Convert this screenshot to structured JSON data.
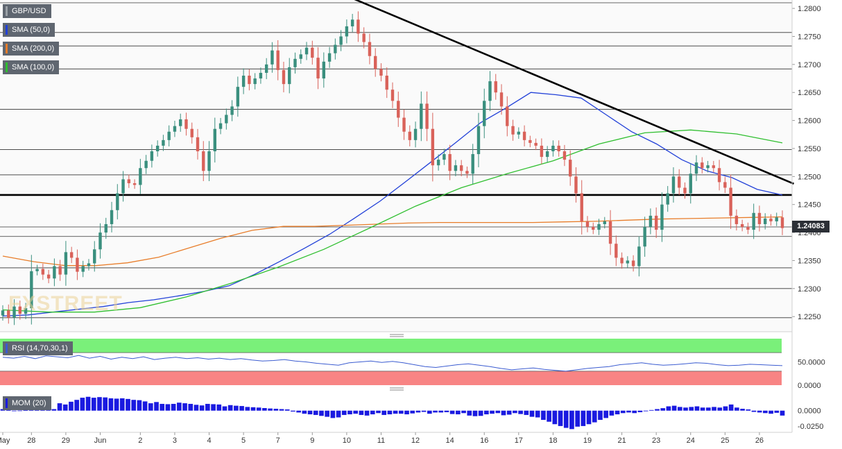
{
  "legend": {
    "symbol": "GBP/USD",
    "sma50": "SMA (50,0)",
    "sma200": "SMA (200,0)",
    "sma100": "SMA (100,0)",
    "rsi": "RSI (14,70,30,1)",
    "mom": "MOM (20)"
  },
  "watermark": "FXSTREET",
  "current_price": "1.24083",
  "colors": {
    "up": "#3a8f7e",
    "down": "#d9625a",
    "sma50": "#2140d8",
    "sma200": "#e87d2a",
    "sma100": "#2fbf2f",
    "rsi_overbought": "#7af07a",
    "rsi_oversold": "#f88484",
    "rsi_line": "#3a5bd0",
    "mom": "#1a1ae0"
  },
  "chart_data": [
    {
      "type": "candlestick",
      "symbol": "GBP/USD",
      "timeframe": "4h",
      "y_ticks": [
        "1.2800",
        "1.2750",
        "1.2700",
        "1.2650",
        "1.2600",
        "1.2550",
        "1.2500",
        "1.2450",
        "1.2400",
        "1.2350",
        "1.2300",
        "1.2250"
      ],
      "ylim": [
        1.2223,
        1.2815
      ],
      "x_labels": [
        {
          "label": "May",
          "index": 0
        },
        {
          "label": "28",
          "index": 5
        },
        {
          "label": "29",
          "index": 11
        },
        {
          "label": "Jun",
          "index": 17
        },
        {
          "label": "2",
          "index": 24
        },
        {
          "label": "3",
          "index": 30
        },
        {
          "label": "4",
          "index": 36
        },
        {
          "label": "5",
          "index": 42
        },
        {
          "label": "7",
          "index": 48
        },
        {
          "label": "9",
          "index": 54
        },
        {
          "label": "10",
          "index": 60
        },
        {
          "label": "11",
          "index": 66
        },
        {
          "label": "12",
          "index": 72
        },
        {
          "label": "14",
          "index": 78
        },
        {
          "label": "16",
          "index": 84
        },
        {
          "label": "17",
          "index": 90
        },
        {
          "label": "18",
          "index": 96
        },
        {
          "label": "19",
          "index": 102
        },
        {
          "label": "21",
          "index": 108
        },
        {
          "label": "23",
          "index": 114
        },
        {
          "label": "24",
          "index": 120
        },
        {
          "label": "25",
          "index": 126
        },
        {
          "label": "26",
          "index": 132
        }
      ],
      "closes": [
        1.2261,
        1.2248,
        1.2268,
        1.2255,
        1.2265,
        1.2331,
        1.2335,
        1.2325,
        1.2318,
        1.234,
        1.2325,
        1.2365,
        1.2355,
        1.233,
        1.234,
        1.2345,
        1.237,
        1.24,
        1.2415,
        1.244,
        1.247,
        1.2495,
        1.2488,
        1.2485,
        1.2515,
        1.2528,
        1.2545,
        1.2555,
        1.2565,
        1.258,
        1.259,
        1.2602,
        1.2585,
        1.257,
        1.2545,
        1.251,
        1.2545,
        1.2585,
        1.2595,
        1.261,
        1.2625,
        1.266,
        1.268,
        1.2665,
        1.2675,
        1.2685,
        1.27,
        1.2725,
        1.269,
        1.2665,
        1.2695,
        1.271,
        1.2718,
        1.273,
        1.2712,
        1.2675,
        1.2705,
        1.272,
        1.2735,
        1.275,
        1.2768,
        1.278,
        1.2755,
        1.274,
        1.2715,
        1.2692,
        1.268,
        1.2655,
        1.2635,
        1.2605,
        1.258,
        1.2565,
        1.2585,
        1.263,
        1.2585,
        1.252,
        1.253,
        1.254,
        1.251,
        1.252,
        1.251,
        1.2505,
        1.254,
        1.259,
        1.2635,
        1.267,
        1.265,
        1.2625,
        1.259,
        1.2575,
        1.258,
        1.2565,
        1.256,
        1.2555,
        1.2535,
        1.2545,
        1.2555,
        1.2545,
        1.253,
        1.25,
        1.247,
        1.242,
        1.241,
        1.2405,
        1.2415,
        1.242,
        1.238,
        1.2355,
        1.2345,
        1.235,
        1.234,
        1.2375,
        1.241,
        1.243,
        1.2405,
        1.245,
        1.247,
        1.25,
        1.248,
        1.247,
        1.2505,
        1.2525,
        1.2515,
        1.252,
        1.2515,
        1.249,
        1.248,
        1.243,
        1.2415,
        1.241,
        1.2405,
        1.2435,
        1.2415,
        1.2425,
        1.242,
        1.2427,
        1.2408
      ],
      "series": [
        {
          "name": "SMA (50,0)",
          "start_index": 0,
          "values": [
            1.2251,
            1.2253,
            1.2258,
            1.2263,
            1.2268,
            1.2275,
            1.228,
            1.2287,
            1.2295,
            1.2305,
            1.2325,
            1.2348,
            1.2372,
            1.2397,
            1.2426,
            1.2456,
            1.249,
            1.2525,
            1.256,
            1.2596,
            1.2622,
            1.265,
            1.2646,
            1.264,
            1.261,
            1.258,
            1.2558,
            1.253,
            1.251,
            1.2498,
            1.2477,
            1.2467
          ]
        },
        {
          "name": "SMA (200,0)",
          "start_index": 0,
          "values": [
            1.2358,
            1.2348,
            1.2341,
            1.2341,
            1.2346,
            1.2356,
            1.2373,
            1.239,
            1.2404,
            1.2411,
            1.2411,
            1.2413,
            1.2415,
            1.2417,
            1.2418,
            1.2418,
            1.2418,
            1.2418,
            1.2419,
            1.242,
            1.2422,
            1.2424,
            1.2425,
            1.2426,
            1.2427,
            1.2428
          ]
        },
        {
          "name": "SMA (100,0)",
          "start_index": 0,
          "values": [
            1.2262,
            1.2258,
            1.2258,
            1.2266,
            1.2285,
            1.231,
            1.2338,
            1.237,
            1.2408,
            1.2447,
            1.248,
            1.2505,
            1.2528,
            1.2558,
            1.2578,
            1.2583,
            1.2576,
            1.256
          ]
        }
      ],
      "overlay_points_per_series": "evenly spaced across candles",
      "horizontal_lines": [
        1.281,
        1.2757,
        1.2733,
        1.2692,
        1.262,
        1.2548,
        1.2503,
        1.2467,
        1.241,
        1.2393,
        1.2337,
        1.23,
        1.2248
      ],
      "support_level": 1.2467,
      "trendline": {
        "from_index": 61,
        "from_value": 1.2818,
        "to_index": 138,
        "to_value": 1.2487
      }
    },
    {
      "type": "line",
      "name": "RSI (14,70,30,1)",
      "y_ticks": [
        "50.0000",
        "0.0000"
      ],
      "ylim": [
        0,
        100
      ],
      "overbought": 70,
      "oversold": 30,
      "values": [
        60,
        58,
        62,
        57,
        63,
        61,
        59,
        64,
        58,
        62,
        56,
        60,
        57,
        61,
        55,
        58,
        60,
        57,
        59,
        56,
        58,
        55,
        57,
        54,
        52,
        53,
        55,
        52,
        50,
        47,
        45,
        43,
        48,
        50,
        52,
        49,
        51,
        48,
        44,
        40,
        38,
        41,
        44,
        46,
        43,
        40,
        36,
        33,
        35,
        37,
        34,
        32,
        30,
        33,
        36,
        38,
        40,
        44,
        46,
        48,
        45,
        43,
        44,
        46,
        48,
        47,
        44,
        42,
        43,
        45,
        44,
        43,
        42
      ]
    },
    {
      "type": "bar",
      "name": "MOM (20)",
      "y_ticks": [
        "0.0000",
        "-0.0250"
      ],
      "ylim": [
        -0.033,
        0.029
      ],
      "values": [
        0.0025,
        0.0008,
        -0.0004,
        0.0002,
        0.0006,
        0.0032,
        0.0038,
        0.001,
        0.0018,
        0.0025,
        0.012,
        0.01,
        0.0145,
        0.0175,
        0.021,
        0.0225,
        0.021,
        0.022,
        0.0215,
        0.02,
        0.0195,
        0.02,
        0.019,
        0.0175,
        0.017,
        0.015,
        0.012,
        0.014,
        0.011,
        0.0105,
        0.011,
        0.013,
        0.012,
        0.011,
        0.0095,
        0.0085,
        0.011,
        0.0105,
        0.01,
        0.007,
        0.009,
        0.008,
        0.0075,
        0.006,
        0.0055,
        0.005,
        0.0042,
        0.0035,
        0.003,
        0.0025,
        0.002,
        -0.0015,
        -0.003,
        -0.005,
        -0.006,
        -0.007,
        -0.0085,
        -0.01,
        -0.012,
        -0.011,
        -0.007,
        -0.006,
        -0.005,
        -0.007,
        -0.008,
        -0.006,
        -0.004,
        -0.007,
        -0.006,
        -0.005,
        -0.005,
        -0.006,
        -0.0045,
        -0.003,
        -0.002,
        -0.005,
        -0.003,
        -0.003,
        -0.0025,
        -0.0055,
        -0.006,
        -0.004,
        -0.008,
        -0.009,
        -0.0085,
        -0.006,
        -0.005,
        -0.004,
        -0.0075,
        -0.0065,
        -0.004,
        -0.0055,
        -0.007,
        -0.01,
        -0.011,
        -0.015,
        -0.018,
        -0.022,
        -0.025,
        -0.028,
        -0.03,
        -0.026,
        -0.025,
        -0.022,
        -0.019,
        -0.015,
        -0.012,
        -0.008,
        -0.006,
        -0.004,
        -0.003,
        -0.004,
        -0.0025,
        -0.001,
        0.001,
        0.0025,
        0.004,
        0.007,
        0.008,
        0.006,
        0.005,
        0.006,
        0.007,
        0.005,
        0.005,
        0.006,
        0.005,
        0.007,
        0.01,
        0.005,
        0.003,
        0.002,
        -0.002,
        -0.003,
        -0.004,
        -0.005,
        -0.0035,
        -0.008
      ]
    }
  ]
}
